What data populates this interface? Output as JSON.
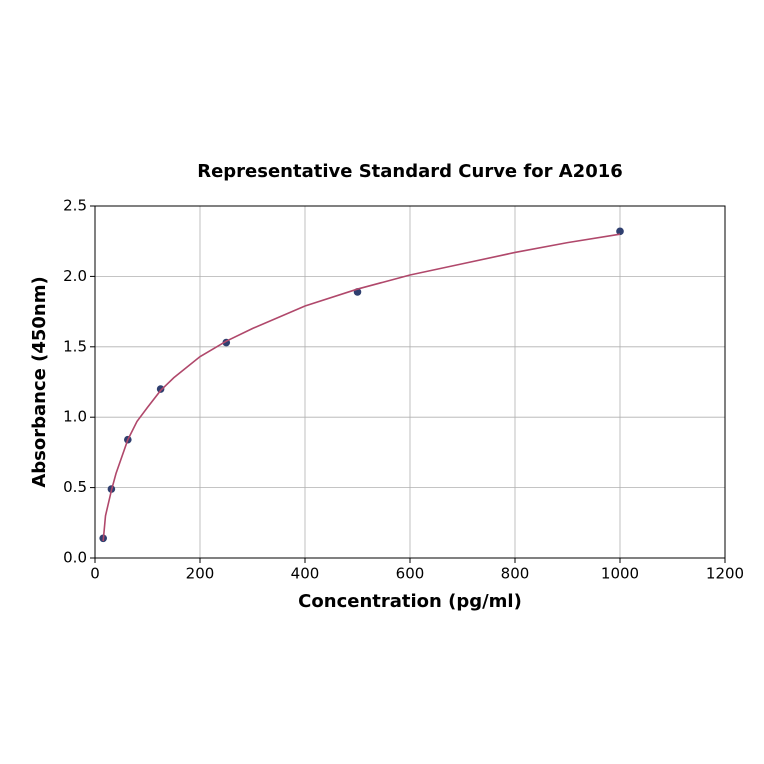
{
  "chart_data": {
    "type": "scatter",
    "title": "Representative Standard Curve for A2016",
    "xlabel": "Concentration (pg/ml)",
    "ylabel": "Absorbance (450nm)",
    "xlim": [
      0,
      1200
    ],
    "ylim": [
      0,
      2.5
    ],
    "xticks": [
      0,
      200,
      400,
      600,
      800,
      1000,
      1200
    ],
    "yticks": [
      {
        "value": 0,
        "label": "0.0"
      },
      0.5,
      {
        "value": 1,
        "label": "1.0"
      },
      1.5,
      {
        "value": 2,
        "label": "2.0"
      },
      2.5
    ],
    "grid": true,
    "series": [
      {
        "mode": "markers",
        "color": "#2f3f6f",
        "x": [
          15.6,
          31.25,
          62.5,
          125,
          250,
          500,
          1000
        ],
        "values": [
          0.14,
          0.49,
          0.84,
          1.2,
          1.53,
          1.89,
          2.32
        ]
      },
      {
        "mode": "line",
        "color": "#b0486b",
        "x": [
          15.6,
          20,
          31.25,
          40,
          62.5,
          80,
          100,
          125,
          150,
          200,
          250,
          300,
          400,
          500,
          600,
          700,
          800,
          900,
          1000
        ],
        "values": [
          0.12,
          0.3,
          0.48,
          0.6,
          0.84,
          0.97,
          1.07,
          1.19,
          1.28,
          1.43,
          1.54,
          1.63,
          1.79,
          1.91,
          2.01,
          2.09,
          2.17,
          2.24,
          2.3
        ]
      }
    ]
  }
}
